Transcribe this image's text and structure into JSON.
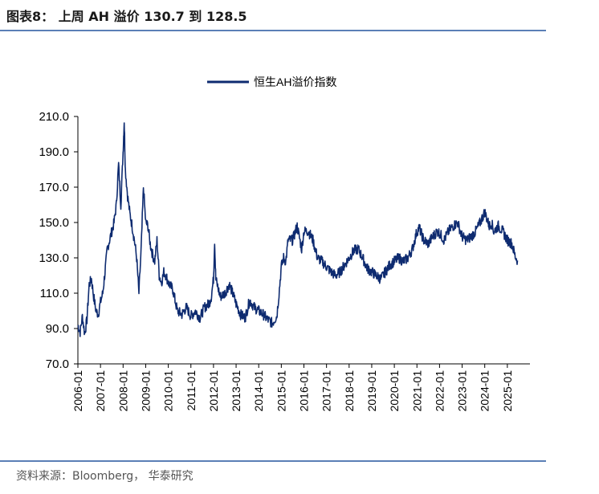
{
  "figure_title": "图表8： 上周 AH 溢价 130.7 到 128.5",
  "source": "资料来源：Bloomberg， 华泰研究",
  "chart_data": {
    "type": "line",
    "title": "",
    "xlabel": "",
    "ylabel": "",
    "ylim": [
      70,
      210
    ],
    "grid": false,
    "legend_position": "top",
    "yticks": [
      "70.0",
      "90.0",
      "110.0",
      "130.0",
      "150.0",
      "170.0",
      "190.0",
      "210.0"
    ],
    "xticks": [
      "2006-01",
      "2007-01",
      "2008-01",
      "2009-01",
      "2010-01",
      "2011-01",
      "2012-01",
      "2013-01",
      "2014-01",
      "2015-01",
      "2016-01",
      "2017-01",
      "2018-01",
      "2019-01",
      "2020-01",
      "2021-01",
      "2022-01",
      "2023-01",
      "2024-01",
      "2025-01"
    ],
    "series": [
      {
        "name": "恒生AH溢价指数",
        "color": "#0e2b70",
        "points": [
          [
            2006.0,
            92
          ],
          [
            2006.1,
            88
          ],
          [
            2006.2,
            97
          ],
          [
            2006.3,
            87
          ],
          [
            2006.4,
            95
          ],
          [
            2006.5,
            115
          ],
          [
            2006.6,
            118
          ],
          [
            2006.7,
            108
          ],
          [
            2006.8,
            100
          ],
          [
            2006.9,
            98
          ],
          [
            2007.0,
            105
          ],
          [
            2007.1,
            110
          ],
          [
            2007.2,
            122
          ],
          [
            2007.3,
            135
          ],
          [
            2007.4,
            140
          ],
          [
            2007.5,
            145
          ],
          [
            2007.6,
            150
          ],
          [
            2007.7,
            160
          ],
          [
            2007.8,
            183
          ],
          [
            2007.9,
            160
          ],
          [
            2008.0,
            190
          ],
          [
            2008.05,
            208
          ],
          [
            2008.1,
            180
          ],
          [
            2008.2,
            165
          ],
          [
            2008.3,
            155
          ],
          [
            2008.4,
            148
          ],
          [
            2008.5,
            140
          ],
          [
            2008.6,
            130
          ],
          [
            2008.7,
            110
          ],
          [
            2008.8,
            135
          ],
          [
            2008.9,
            170
          ],
          [
            2009.0,
            150
          ],
          [
            2009.1,
            148
          ],
          [
            2009.2,
            138
          ],
          [
            2009.3,
            132
          ],
          [
            2009.4,
            128
          ],
          [
            2009.5,
            140
          ],
          [
            2009.6,
            120
          ],
          [
            2009.7,
            116
          ],
          [
            2009.8,
            122
          ],
          [
            2009.9,
            120
          ],
          [
            2010.0,
            116
          ],
          [
            2010.2,
            112
          ],
          [
            2010.4,
            100
          ],
          [
            2010.6,
            98
          ],
          [
            2010.8,
            102
          ],
          [
            2011.0,
            97
          ],
          [
            2011.2,
            100
          ],
          [
            2011.4,
            96
          ],
          [
            2011.6,
            102
          ],
          [
            2011.8,
            104
          ],
          [
            2011.9,
            108
          ],
          [
            2012.0,
            118
          ],
          [
            2012.05,
            140
          ],
          [
            2012.1,
            118
          ],
          [
            2012.3,
            108
          ],
          [
            2012.5,
            110
          ],
          [
            2012.7,
            115
          ],
          [
            2012.9,
            108
          ],
          [
            2013.0,
            104
          ],
          [
            2013.2,
            98
          ],
          [
            2013.4,
            96
          ],
          [
            2013.6,
            106
          ],
          [
            2013.8,
            102
          ],
          [
            2014.0,
            100
          ],
          [
            2014.2,
            98
          ],
          [
            2014.4,
            95
          ],
          [
            2014.6,
            93
          ],
          [
            2014.8,
            97
          ],
          [
            2014.9,
            110
          ],
          [
            2015.0,
            125
          ],
          [
            2015.1,
            130
          ],
          [
            2015.2,
            128
          ],
          [
            2015.3,
            140
          ],
          [
            2015.5,
            140
          ],
          [
            2015.7,
            148
          ],
          [
            2015.9,
            135
          ],
          [
            2016.0,
            145
          ],
          [
            2016.2,
            145
          ],
          [
            2016.4,
            140
          ],
          [
            2016.6,
            130
          ],
          [
            2016.8,
            128
          ],
          [
            2017.0,
            125
          ],
          [
            2017.2,
            122
          ],
          [
            2017.4,
            120
          ],
          [
            2017.6,
            122
          ],
          [
            2017.8,
            126
          ],
          [
            2018.0,
            130
          ],
          [
            2018.2,
            134
          ],
          [
            2018.4,
            135
          ],
          [
            2018.6,
            130
          ],
          [
            2018.8,
            124
          ],
          [
            2019.0,
            122
          ],
          [
            2019.2,
            120
          ],
          [
            2019.4,
            118
          ],
          [
            2019.6,
            122
          ],
          [
            2019.8,
            126
          ],
          [
            2020.0,
            128
          ],
          [
            2020.2,
            130
          ],
          [
            2020.4,
            128
          ],
          [
            2020.6,
            130
          ],
          [
            2020.8,
            135
          ],
          [
            2021.0,
            145
          ],
          [
            2021.1,
            147
          ],
          [
            2021.3,
            140
          ],
          [
            2021.5,
            138
          ],
          [
            2021.7,
            142
          ],
          [
            2021.9,
            145
          ],
          [
            2022.0,
            144
          ],
          [
            2022.2,
            140
          ],
          [
            2022.4,
            145
          ],
          [
            2022.6,
            148
          ],
          [
            2022.8,
            150
          ],
          [
            2023.0,
            142
          ],
          [
            2023.2,
            140
          ],
          [
            2023.4,
            142
          ],
          [
            2023.6,
            145
          ],
          [
            2023.8,
            150
          ],
          [
            2024.0,
            156
          ],
          [
            2024.1,
            152
          ],
          [
            2024.2,
            148
          ],
          [
            2024.3,
            150
          ],
          [
            2024.4,
            145
          ],
          [
            2024.6,
            148
          ],
          [
            2024.8,
            145
          ],
          [
            2025.0,
            140
          ],
          [
            2025.2,
            138
          ],
          [
            2025.35,
            130.7
          ],
          [
            2025.45,
            128.5
          ]
        ]
      }
    ]
  }
}
